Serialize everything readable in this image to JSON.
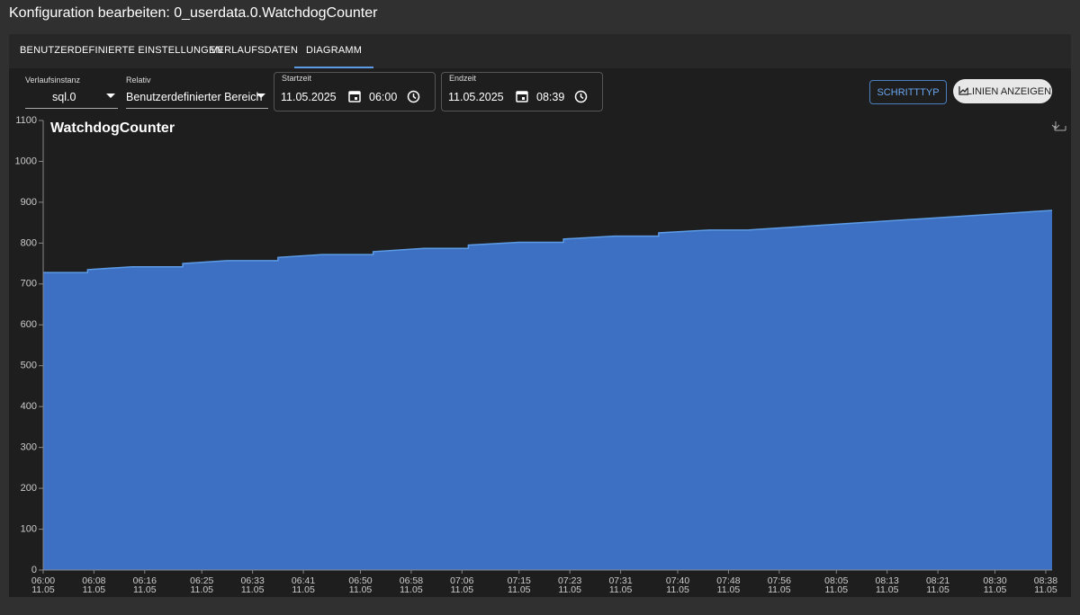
{
  "header": {
    "title": "Konfiguration bearbeiten: 0_userdata.0.WatchdogCounter"
  },
  "tabs": {
    "items": [
      "BENUTZERDEFINIERTE EINSTELLUNGEN",
      "VERLAUFSDATEN",
      "DIAGRAMM"
    ],
    "active": 2
  },
  "controls": {
    "instance": {
      "label": "Verlaufsinstanz",
      "value": "sql.0"
    },
    "relative": {
      "label": "Relativ",
      "value": "Benutzerdefinierter Bereich"
    },
    "start": {
      "label": "Startzeit",
      "date": "11.05.2025",
      "time": "06:00"
    },
    "end": {
      "label": "Endzeit",
      "date": "11.05.2025",
      "time": "08:39"
    },
    "buttons": [
      "SCHRITTTYP",
      "LINIEN ANZEIGEN"
    ]
  },
  "chart_data": {
    "type": "area",
    "title": "WatchdogCounter",
    "series": [
      {
        "name": "WatchdogCounter",
        "color": "#3d70c2",
        "line_color": "#5c9be6",
        "x": [
          "06:00",
          "06:07",
          "06:07",
          "06:14",
          "06:22",
          "06:22",
          "06:29",
          "06:37",
          "06:37",
          "06:44",
          "06:52",
          "06:52",
          "07:00",
          "07:07",
          "07:07",
          "07:15",
          "07:22",
          "07:22",
          "07:30",
          "07:37",
          "07:37",
          "07:45",
          "07:51",
          "08:39"
        ],
        "values": [
          728,
          728,
          735,
          742,
          742,
          750,
          757,
          757,
          765,
          772,
          772,
          779,
          787,
          787,
          795,
          802,
          802,
          810,
          817,
          817,
          825,
          832,
          832,
          880
        ]
      }
    ],
    "xlim": [
      "06:00",
      "08:39"
    ],
    "xticks": [
      "06:00",
      "06:08",
      "06:16",
      "06:25",
      "06:33",
      "06:41",
      "06:50",
      "06:58",
      "07:06",
      "07:15",
      "07:23",
      "07:31",
      "07:40",
      "07:48",
      "07:56",
      "08:05",
      "08:13",
      "08:21",
      "08:30",
      "08:38"
    ],
    "xtick_dates": [
      "11.05",
      "11.05",
      "11.05",
      "11.05",
      "11.05",
      "11.05",
      "11.05",
      "11.05",
      "11.05",
      "11.05",
      "11.05",
      "11.05",
      "11.05",
      "11.05",
      "11.05",
      "11.05",
      "11.05",
      "11.05",
      "11.05",
      "11.05"
    ],
    "ylim": [
      0,
      1100
    ],
    "yticks": [
      0,
      100,
      200,
      300,
      400,
      500,
      600,
      700,
      800,
      900,
      1000,
      1100
    ],
    "grid": false
  }
}
